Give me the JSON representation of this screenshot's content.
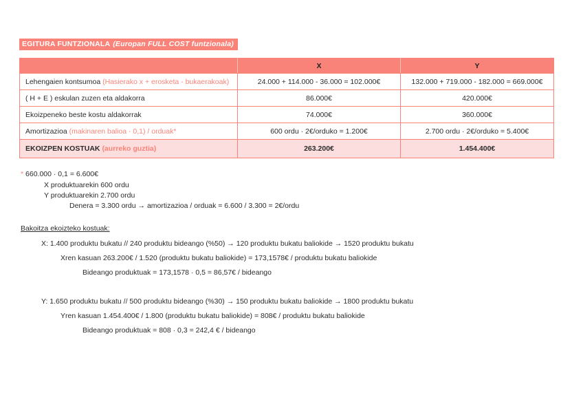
{
  "colors": {
    "accent": "#f98379",
    "header_bg": "#f98379",
    "row_highlight": "#fbdedd"
  },
  "header": {
    "title_main": "EGITURA FUNTZIONALA",
    "title_paren": "(Europan FULL COST funtzionala)"
  },
  "table": {
    "headers": [
      "",
      "X",
      "Y"
    ],
    "rows": [
      {
        "label_main": "Lehengaien kontsumoa ",
        "label_accent": "(Hasierako x + erosketa - bukaerakoak)",
        "x": "24.000 + 114.000 - 36.000 = 102.000€",
        "y": "132.000 + 719.000 - 182.000 = 669.000€"
      },
      {
        "label_main": "( H + E ) eskulan zuzen eta aldakorra",
        "label_accent": "",
        "x": "86.000€",
        "y": "420.000€"
      },
      {
        "label_main": "Ekoizpeneko beste kostu aldakorrak",
        "label_accent": "",
        "x": "74.000€",
        "y": "360.000€"
      },
      {
        "label_main": "Amortizazioa ",
        "label_accent": "(makinaren balioa · 0,1) / orduak*",
        "x": "600 ordu · 2€/orduko = 1.200€",
        "y": "2.700 ordu · 2€/orduko = 5.400€"
      },
      {
        "label_main": "EKOIZPEN KOSTUAK ",
        "label_accent": "(aurreko guztia)",
        "x": "263.200€",
        "y": "1.454.400€"
      }
    ]
  },
  "footnote": {
    "star": "* ",
    "line1": "660.000 · 0,1 = 6.600€",
    "line2": "X produktuarekin 600 ordu",
    "line3": "Y produktuarekin 2.700 ordu",
    "line4": "Denera = 3.300 ordu → amortizazioa / orduak = 6.600 / 3.300 = 2€/ordu"
  },
  "section": {
    "heading": "Bakoitza ekoizteko kostuak:",
    "x_line1": "X: 1.400 produktu bukatu // 240 produktu bideango (%50) → 120 produktu bukatu baliokide → 1520 produktu bukatu",
    "x_line2": "Xren kasuan 263.200€ / 1.520 (produktu bukatu baliokide) = 173,1578€ / produktu bukatu baliokide",
    "x_line3": "Bideango produktuak = 173,1578 · 0,5 = 86,57€ / bideango",
    "y_line1": "Y: 1.650 produktu bukatu // 500 produktu bideango (%30) → 150 produktu bukatu baliokide → 1800 produktu bukatu",
    "y_line2": "Yren kasuan 1.454.400€ / 1.800 (produktu bukatu baliokide) = 808€ / produktu bukatu baliokide",
    "y_line3": "Bideango produktuak = 808 · 0,3 = 242,4 € / bideango"
  }
}
